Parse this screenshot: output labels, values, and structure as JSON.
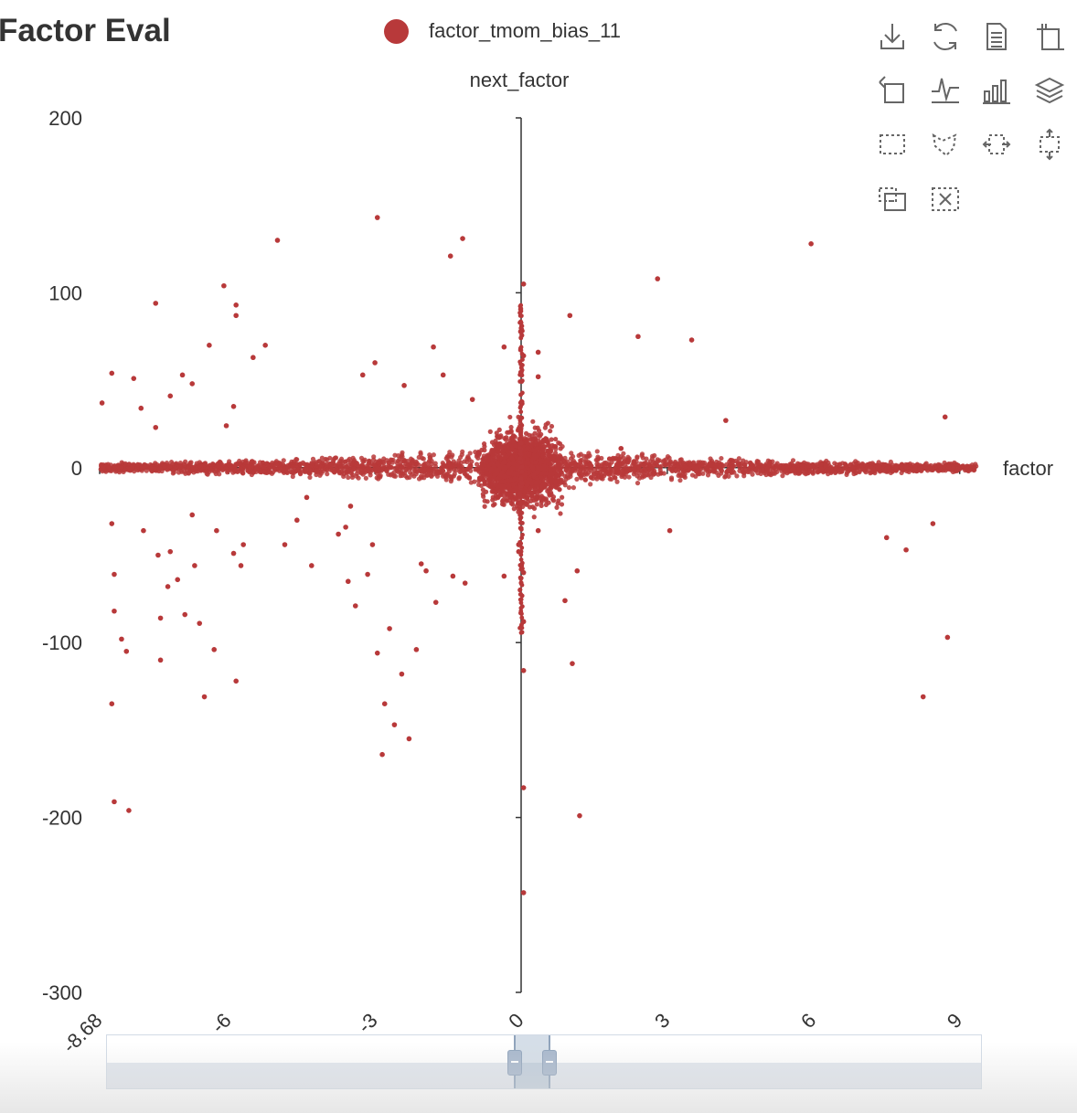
{
  "title": "Factor Eval",
  "legend": {
    "label": "factor_tmom_bias_11",
    "color": "#b8393a"
  },
  "toolbox": {
    "icons": [
      "download-icon",
      "refresh-icon",
      "data-view-icon",
      "zoom-icon",
      "zoom-reset-icon",
      "line-chart-icon",
      "bar-chart-icon",
      "stack-icon",
      "rect-select-icon",
      "lasso-select-icon",
      "keep-select-icon",
      "clear-select-icon",
      "brush-icon",
      "clear-brush-icon"
    ]
  },
  "chart_data": {
    "type": "scatter",
    "title": "",
    "xlabel": "factor",
    "ylabel": "next_factor",
    "xlim": [
      -8.68,
      9.4
    ],
    "ylim": [
      -300,
      200
    ],
    "x_ticks": [
      "-8.68",
      "-6",
      "-3",
      "0",
      "3",
      "6",
      "9"
    ],
    "y_ticks": [
      "200",
      "100",
      "0",
      "-100",
      "-200",
      "-300"
    ],
    "grid": false,
    "legend_position": "top",
    "series": [
      {
        "name": "factor_tmom_bias_11",
        "color": "#b8393a",
        "points": [
          [
            -8.6,
            37
          ],
          [
            -8.4,
            54
          ],
          [
            -8.4,
            -32
          ],
          [
            -8.35,
            -61
          ],
          [
            -8.35,
            -82
          ],
          [
            -8.4,
            -135
          ],
          [
            -8.35,
            -191
          ],
          [
            -8.2,
            -98
          ],
          [
            -8.1,
            -105
          ],
          [
            -8.05,
            -196
          ],
          [
            -7.95,
            51
          ],
          [
            -7.8,
            34
          ],
          [
            -7.75,
            -36
          ],
          [
            -7.5,
            94
          ],
          [
            -7.5,
            23
          ],
          [
            -7.45,
            -50
          ],
          [
            -7.4,
            -86
          ],
          [
            -7.4,
            -110
          ],
          [
            -7.25,
            -68
          ],
          [
            -7.2,
            -48
          ],
          [
            -7.2,
            41
          ],
          [
            -7.05,
            -64
          ],
          [
            -6.95,
            53
          ],
          [
            -6.9,
            -84
          ],
          [
            -6.75,
            48
          ],
          [
            -6.75,
            -27
          ],
          [
            -6.7,
            -56
          ],
          [
            -6.6,
            -89
          ],
          [
            -6.5,
            -131
          ],
          [
            -6.4,
            70
          ],
          [
            -6.3,
            -104
          ],
          [
            -6.25,
            -36
          ],
          [
            -6.1,
            104
          ],
          [
            -6.05,
            24
          ],
          [
            -5.9,
            -49
          ],
          [
            -5.9,
            35
          ],
          [
            -5.85,
            93
          ],
          [
            -5.85,
            87
          ],
          [
            -5.85,
            -122
          ],
          [
            -5.75,
            -56
          ],
          [
            -5.7,
            -44
          ],
          [
            -5.5,
            63
          ],
          [
            -5.25,
            70
          ],
          [
            -5.0,
            130
          ],
          [
            -4.85,
            -44
          ],
          [
            -4.6,
            -30
          ],
          [
            -4.4,
            -17
          ],
          [
            -4.3,
            -56
          ],
          [
            -3.75,
            -38
          ],
          [
            -3.6,
            -34
          ],
          [
            -3.55,
            -65
          ],
          [
            -3.5,
            -22
          ],
          [
            -3.4,
            -79
          ],
          [
            -3.25,
            53
          ],
          [
            -3.15,
            -61
          ],
          [
            -3.05,
            -44
          ],
          [
            -3.0,
            60
          ],
          [
            -2.95,
            -106
          ],
          [
            -2.95,
            143
          ],
          [
            -2.85,
            -164
          ],
          [
            -2.8,
            -135
          ],
          [
            -2.7,
            -92
          ],
          [
            -2.6,
            -147
          ],
          [
            -2.45,
            -118
          ],
          [
            -2.4,
            47
          ],
          [
            -2.3,
            -155
          ],
          [
            -2.15,
            -104
          ],
          [
            -2.05,
            -55
          ],
          [
            -1.95,
            -59
          ],
          [
            -1.8,
            69
          ],
          [
            -1.75,
            -77
          ],
          [
            -1.6,
            53
          ],
          [
            -1.45,
            121
          ],
          [
            -1.4,
            -62
          ],
          [
            -1.2,
            131
          ],
          [
            -1.15,
            -66
          ],
          [
            -1.0,
            39
          ],
          [
            -0.85,
            -6
          ],
          [
            -0.35,
            69
          ],
          [
            -0.35,
            -62
          ],
          [
            -0.05,
            -44
          ],
          [
            -0.05,
            -48
          ],
          [
            0.05,
            105
          ],
          [
            0.05,
            64
          ],
          [
            0.05,
            -60
          ],
          [
            0.05,
            -88
          ],
          [
            0.05,
            -116
          ],
          [
            0.05,
            -183
          ],
          [
            0.05,
            -243
          ],
          [
            0.35,
            -36
          ],
          [
            0.35,
            66
          ],
          [
            0.35,
            52
          ],
          [
            0.9,
            -76
          ],
          [
            1.0,
            87
          ],
          [
            1.05,
            -112
          ],
          [
            1.2,
            -199
          ],
          [
            1.15,
            -59
          ],
          [
            2.05,
            11
          ],
          [
            2.4,
            75
          ],
          [
            2.8,
            108
          ],
          [
            3.05,
            -36
          ],
          [
            3.5,
            73
          ],
          [
            4.2,
            27
          ],
          [
            5.95,
            128
          ],
          [
            7.5,
            -40
          ],
          [
            7.9,
            -47
          ],
          [
            8.25,
            -131
          ],
          [
            8.45,
            -32
          ],
          [
            8.7,
            29
          ],
          [
            8.75,
            -97
          ]
        ]
      }
    ]
  }
}
